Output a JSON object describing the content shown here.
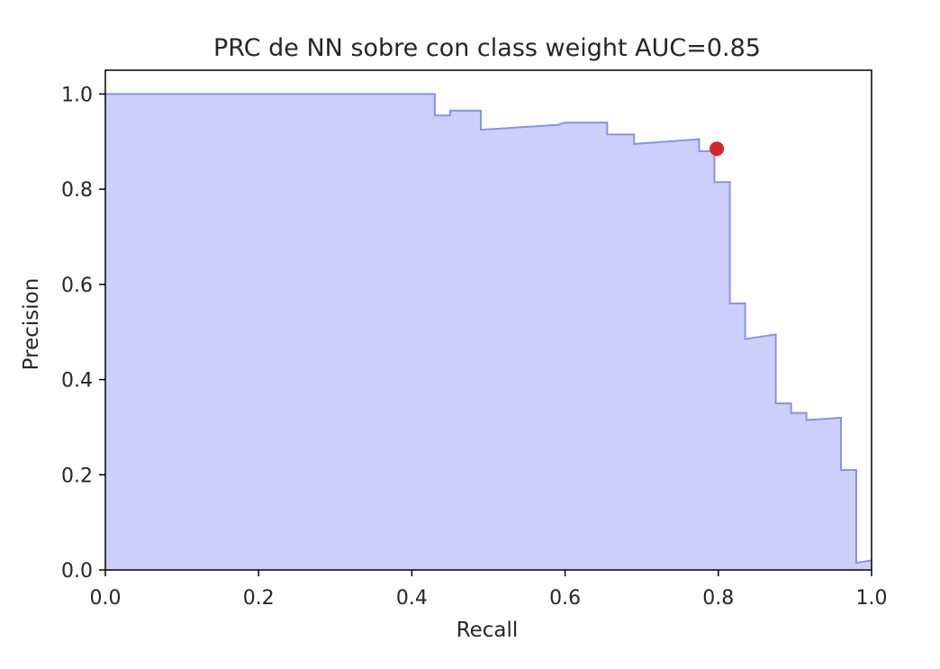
{
  "chart_data": {
    "type": "area",
    "title": "PRC de NN sobre con class weight AUC=0.85",
    "xlabel": "Recall",
    "ylabel": "Precision",
    "xlim": [
      0.0,
      1.0
    ],
    "ylim": [
      0.0,
      1.05
    ],
    "xticks": [
      "0.0",
      "0.2",
      "0.4",
      "0.6",
      "0.8",
      "1.0"
    ],
    "yticks": [
      "0.0",
      "0.2",
      "0.4",
      "0.6",
      "0.8",
      "1.0"
    ],
    "grid": false,
    "fill_color": "#cccffa",
    "line_color": "#8a8ff2",
    "marker_color": "#d62728",
    "series": [
      {
        "x": [
          0.0,
          0.43,
          0.43,
          0.45,
          0.45,
          0.49,
          0.49,
          0.59,
          0.6,
          0.655,
          0.655,
          0.69,
          0.69,
          0.775,
          0.775,
          0.79,
          0.795,
          0.795,
          0.815,
          0.815,
          0.835,
          0.835,
          0.875,
          0.875,
          0.895,
          0.895,
          0.915,
          0.915,
          0.96,
          0.96,
          0.98,
          0.98,
          1.0
        ],
        "y": [
          1.0,
          1.0,
          0.955,
          0.955,
          0.965,
          0.965,
          0.925,
          0.935,
          0.94,
          0.94,
          0.915,
          0.915,
          0.895,
          0.905,
          0.88,
          0.88,
          0.885,
          0.815,
          0.815,
          0.56,
          0.56,
          0.485,
          0.495,
          0.35,
          0.35,
          0.33,
          0.33,
          0.315,
          0.32,
          0.21,
          0.21,
          0.015,
          0.02
        ]
      }
    ],
    "marker": {
      "x": 0.798,
      "y": 0.885
    }
  }
}
